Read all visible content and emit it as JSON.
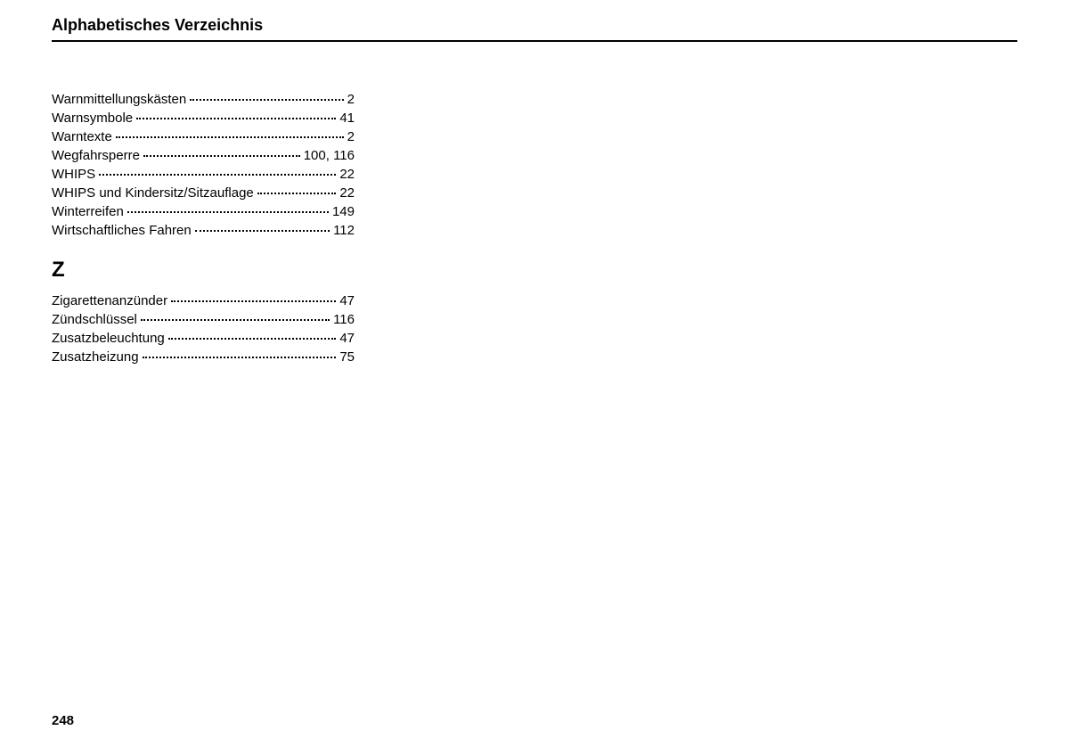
{
  "header": {
    "title": "Alphabetisches Verzeichnis"
  },
  "sections": {
    "w": {
      "entries": [
        {
          "term": "Warnmittellungskästen",
          "page": "2"
        },
        {
          "term": "Warnsymbole",
          "page": "41"
        },
        {
          "term": "Warntexte",
          "page": "2"
        },
        {
          "term": "Wegfahrsperre",
          "page": "100, 116"
        },
        {
          "term": "WHIPS",
          "page": "22"
        },
        {
          "term": "WHIPS und Kindersitz/Sitzauflage",
          "page": "22"
        },
        {
          "term": "Winterreifen",
          "page": "149"
        },
        {
          "term": "Wirtschaftliches Fahren",
          "page": "112"
        }
      ]
    },
    "z": {
      "letter": "Z",
      "entries": [
        {
          "term": "Zigarettenanzünder",
          "page": "47"
        },
        {
          "term": "Zündschlüssel",
          "page": "116"
        },
        {
          "term": "Zusatzbeleuchtung",
          "page": "47"
        },
        {
          "term": "Zusatzheizung",
          "page": "75"
        }
      ]
    }
  },
  "footer": {
    "pageNumber": "248"
  }
}
